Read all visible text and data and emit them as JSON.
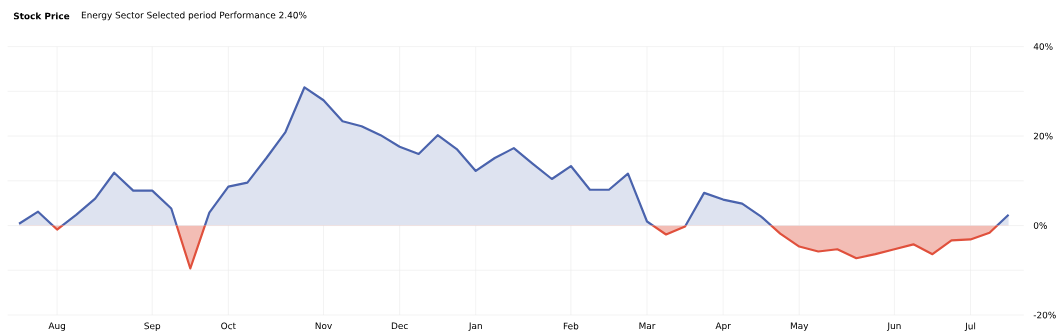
{
  "chart_data": {
    "type": "area",
    "title": "Stock Price",
    "subtitle": "Energy Sector  Selected period Performance 2.40%",
    "categories": [
      null,
      null,
      "Aug",
      null,
      null,
      null,
      null,
      "Sep",
      null,
      null,
      null,
      "Oct",
      null,
      null,
      null,
      null,
      "Nov",
      null,
      null,
      null,
      "Dec",
      null,
      null,
      null,
      "Jan",
      null,
      null,
      null,
      null,
      "Feb",
      null,
      null,
      null,
      "Mar",
      null,
      null,
      null,
      "Apr",
      null,
      null,
      null,
      "May",
      null,
      null,
      null,
      null,
      "Jun",
      null,
      null,
      null,
      "Jul",
      null,
      null
    ],
    "series": [
      {
        "color": "#4a63ad",
        "colors": [
          "#4a63ad",
          "#4a63ad",
          "#e0503c",
          "#4a63ad",
          "#4a63ad",
          "#4a63ad",
          "#4a63ad",
          "#4a63ad",
          "#4a63ad",
          "#e0503c",
          "#4a63ad",
          "#4a63ad",
          "#4a63ad",
          "#4a63ad",
          "#4a63ad",
          "#4a63ad",
          "#4a63ad",
          "#4a63ad",
          "#4a63ad",
          "#4a63ad",
          "#4a63ad",
          "#4a63ad",
          "#4a63ad",
          "#4a63ad",
          "#4a63ad",
          "#4a63ad",
          "#4a63ad",
          "#4a63ad",
          "#4a63ad",
          "#4a63ad",
          "#4a63ad",
          "#4a63ad",
          "#4a63ad",
          "#4a63ad",
          "#e0503c",
          "#e0503c",
          "#4a63ad",
          "#4a63ad",
          "#4a63ad",
          "#4a63ad",
          "#e0503c",
          "#e0503c",
          "#e0503c",
          "#e0503c",
          "#e0503c",
          "#e0503c",
          "#e0503c",
          "#e0503c",
          "#e0503c",
          "#e0503c",
          "#e0503c",
          "#e0503c",
          "#4a63ad"
        ],
        "values": [
          0.4,
          3.1,
          -0.9,
          2.4,
          6,
          11.8,
          7.8,
          7.8,
          3.8,
          -9.6,
          2.9,
          8.7,
          9.6,
          15.1,
          20.9,
          30.9,
          28,
          23.3,
          22.2,
          20.2,
          17.6,
          16,
          20.2,
          17.1,
          12.2,
          15.1,
          17.3,
          13.8,
          10.4,
          13.3,
          8,
          8,
          11.6,
          0.9,
          -2,
          -0.2,
          7.3,
          5.8,
          4.9,
          2,
          -1.8,
          -4.7,
          -5.8,
          -5.3,
          -7.3,
          -6.4,
          -5.3,
          -4.2,
          -6.4,
          -3.3,
          -3.1,
          -1.6,
          2.4
        ]
      }
    ],
    "ylim": [
      -20,
      40
    ],
    "yticks": [
      {
        "value": -20,
        "label": "-20%"
      },
      {
        "value": -10,
        "label": null
      },
      {
        "value": 0,
        "label": "0%"
      },
      {
        "value": 10,
        "label": null
      },
      {
        "value": 20,
        "label": "20%"
      },
      {
        "value": 30,
        "label": null
      },
      {
        "value": 40,
        "label": "40%"
      }
    ],
    "grid": true
  }
}
